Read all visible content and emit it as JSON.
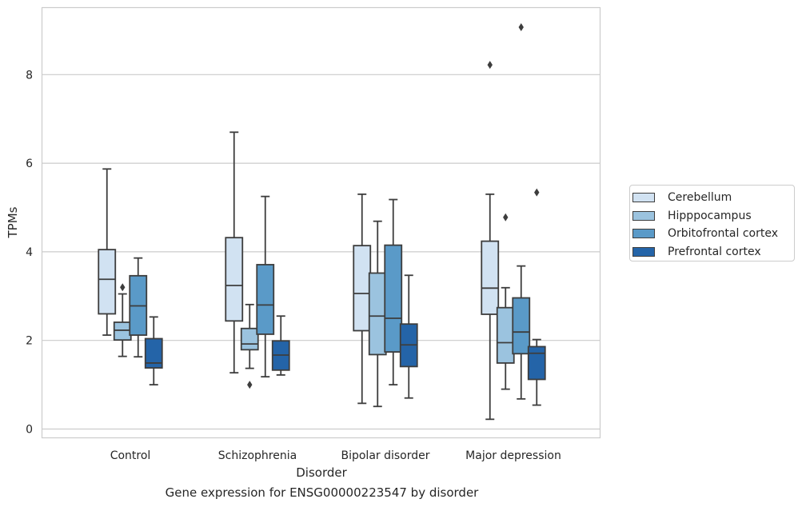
{
  "chart_data": {
    "type": "box",
    "caption": "Gene expression for ENSG00000223547 by disorder",
    "xlabel": "Disorder",
    "ylabel": "TPMs",
    "ylim": [
      -0.2,
      9.5
    ],
    "yticks": [
      0,
      2,
      4,
      6,
      8
    ],
    "grid": "horizontal",
    "legend_position": "right",
    "categories": [
      "Control",
      "Schizophrenia",
      "Bipolar disorder",
      "Major depression"
    ],
    "series": [
      {
        "name": "Cerebellum",
        "color": "#d1e2f2",
        "boxes": [
          {
            "whislo": 2.12,
            "q1": 2.6,
            "med": 3.38,
            "q3": 4.05,
            "whishi": 5.87,
            "fliers": []
          },
          {
            "whislo": 1.27,
            "q1": 2.44,
            "med": 3.24,
            "q3": 4.32,
            "whishi": 6.7,
            "fliers": []
          },
          {
            "whislo": 0.58,
            "q1": 2.22,
            "med": 3.06,
            "q3": 4.14,
            "whishi": 5.3,
            "fliers": []
          },
          {
            "whislo": 0.22,
            "q1": 2.59,
            "med": 3.18,
            "q3": 4.24,
            "whishi": 5.3,
            "fliers": [
              8.22
            ]
          }
        ]
      },
      {
        "name": "Hipppocampus",
        "color": "#9bc3df",
        "boxes": [
          {
            "whislo": 1.64,
            "q1": 2.01,
            "med": 2.23,
            "q3": 2.41,
            "whishi": 3.05,
            "fliers": [
              3.2
            ]
          },
          {
            "whislo": 1.37,
            "q1": 1.79,
            "med": 1.92,
            "q3": 2.27,
            "whishi": 2.81,
            "fliers": [
              1.0
            ]
          },
          {
            "whislo": 0.51,
            "q1": 1.68,
            "med": 2.55,
            "q3": 3.52,
            "whishi": 4.69,
            "fliers": []
          },
          {
            "whislo": 0.9,
            "q1": 1.49,
            "med": 1.95,
            "q3": 2.74,
            "whishi": 3.19,
            "fliers": [
              4.78
            ]
          }
        ]
      },
      {
        "name": "Orbitofrontal cortex",
        "color": "#5a9ac8",
        "boxes": [
          {
            "whislo": 1.63,
            "q1": 2.12,
            "med": 2.78,
            "q3": 3.46,
            "whishi": 3.86,
            "fliers": []
          },
          {
            "whislo": 1.18,
            "q1": 2.14,
            "med": 2.8,
            "q3": 3.71,
            "whishi": 5.25,
            "fliers": []
          },
          {
            "whislo": 1.0,
            "q1": 1.74,
            "med": 2.5,
            "q3": 4.15,
            "whishi": 5.18,
            "fliers": []
          },
          {
            "whislo": 0.68,
            "q1": 1.7,
            "med": 2.19,
            "q3": 2.96,
            "whishi": 3.68,
            "fliers": [
              9.07
            ]
          }
        ]
      },
      {
        "name": "Prefrontal cortex",
        "color": "#2464a8",
        "boxes": [
          {
            "whislo": 1.0,
            "q1": 1.38,
            "med": 1.49,
            "q3": 2.04,
            "whishi": 2.53,
            "fliers": []
          },
          {
            "whislo": 1.22,
            "q1": 1.33,
            "med": 1.67,
            "q3": 1.99,
            "whishi": 2.55,
            "fliers": []
          },
          {
            "whislo": 0.7,
            "q1": 1.41,
            "med": 1.9,
            "q3": 2.37,
            "whishi": 3.47,
            "fliers": []
          },
          {
            "whislo": 0.54,
            "q1": 1.12,
            "med": 1.71,
            "q3": 1.86,
            "whishi": 2.02,
            "fliers": [
              5.34
            ]
          }
        ]
      }
    ]
  }
}
